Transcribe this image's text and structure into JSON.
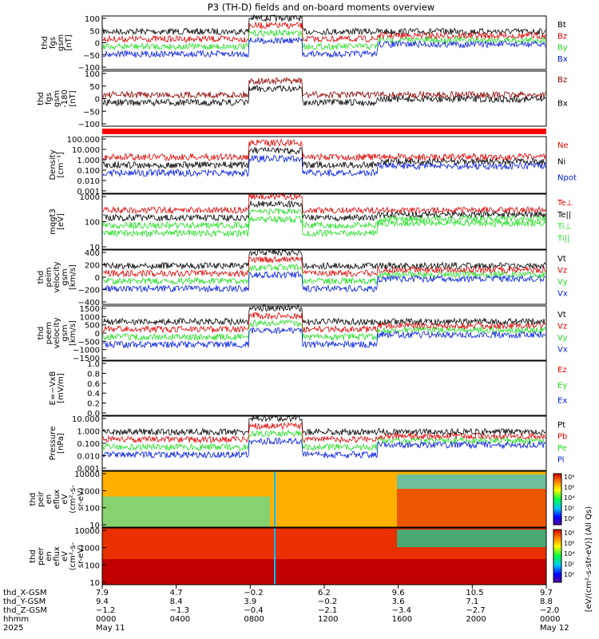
{
  "title": "P3 (TH-D) fields and on-board moments overview",
  "colors": {
    "black": "#000000",
    "red": "#e00000",
    "green": "#22dd22",
    "blue": "#0018e0",
    "dred": "#8b0000",
    "band": "#ff0000"
  },
  "panels": [
    {
      "id": "fgs",
      "ylabel": [
        "thd",
        "fgs",
        "gsm",
        "[nT]"
      ],
      "ticks": [
        "100",
        "50",
        "0",
        "−50",
        "−100"
      ],
      "legend": [
        {
          "text": "Bt",
          "color": "black"
        },
        {
          "text": "Bz",
          "color": "red"
        },
        {
          "text": "By",
          "color": "green"
        },
        {
          "text": "Bx",
          "color": "blue"
        }
      ]
    },
    {
      "id": "fgs-angle",
      "ylabel": [
        "thd",
        "fgs",
        "gsm",
        "-180",
        "[nT]"
      ],
      "ticks": [
        "100",
        "50",
        "0",
        "−50",
        "−100"
      ],
      "legend": [
        {
          "text": "Bz",
          "color": "dred"
        },
        {
          "text": "Bx",
          "color": "black"
        }
      ]
    },
    {
      "id": "density",
      "ylabel": [
        "Density",
        "[cm⁻³]"
      ],
      "ticks": [
        "100.000",
        "10.000",
        "1.000",
        "0.100",
        "0.010",
        "0.001"
      ],
      "legend": [
        {
          "text": "Ne",
          "color": "red"
        },
        {
          "text": "Ni",
          "color": "black"
        },
        {
          "text": "Npot",
          "color": "blue"
        }
      ]
    },
    {
      "id": "temp",
      "ylabel": [
        "mqgt3",
        "[eV]"
      ],
      "ticks": [
        "1000",
        "100",
        "10"
      ],
      "legend": [
        {
          "text": "Te⊥",
          "color": "red"
        },
        {
          "text": "Te||",
          "color": "black"
        },
        {
          "text": "Ti⊥",
          "color": "green"
        },
        {
          "text": "Ti||",
          "color": "green"
        }
      ]
    },
    {
      "id": "peim",
      "ylabel": [
        "thd",
        "peim",
        "velocity",
        "gsm",
        "[km/s]"
      ],
      "ticks": [
        "400",
        "200",
        "0",
        "−200",
        "−400"
      ],
      "legend": [
        {
          "text": "Vt",
          "color": "black"
        },
        {
          "text": "Vz",
          "color": "red"
        },
        {
          "text": "Vy",
          "color": "green"
        },
        {
          "text": "Vx",
          "color": "blue"
        }
      ]
    },
    {
      "id": "peem",
      "ylabel": [
        "thd",
        "peem",
        "velocity",
        "gsm",
        "[km/s]"
      ],
      "ticks": [
        "1500",
        "1000",
        "500",
        "0",
        "−500",
        "−1000",
        "−1500"
      ],
      "legend": [
        {
          "text": "Vt",
          "color": "black"
        },
        {
          "text": "Vz",
          "color": "red"
        },
        {
          "text": "Vy",
          "color": "green"
        },
        {
          "text": "Vx",
          "color": "blue"
        }
      ]
    },
    {
      "id": "efield",
      "ylabel": [
        "E=−VxB",
        "[mV/m]"
      ],
      "ticks": [
        "1.0",
        "0.8",
        "0.6",
        "0.4",
        "0.2",
        "0.0"
      ],
      "legend": [
        {
          "text": "Ez",
          "color": "red"
        },
        {
          "text": "Ey",
          "color": "green"
        },
        {
          "text": "Ex",
          "color": "blue"
        }
      ]
    },
    {
      "id": "pressure",
      "ylabel": [
        "Pressure",
        "[nPa]"
      ],
      "ticks": [
        "10.000",
        "1.000",
        "0.100",
        "0.010",
        "0.001"
      ],
      "legend": [
        {
          "text": "Pt",
          "color": "black"
        },
        {
          "text": "Pb",
          "color": "red"
        },
        {
          "text": "Pe",
          "color": "green"
        },
        {
          "text": "Pi",
          "color": "blue"
        }
      ]
    },
    {
      "id": "peir",
      "ylabel": [
        "thd",
        "peir",
        "en",
        "eflux",
        "eV",
        "(cm²-s-",
        "sr-eV)"
      ],
      "ticks": [
        "10000",
        "1000",
        "100",
        "10"
      ],
      "legend": []
    },
    {
      "id": "peer",
      "ylabel": [
        "thd",
        "peer",
        "en",
        "eflux",
        "eV",
        "(cm²-s-",
        "sr-eV)"
      ],
      "ticks": [
        "10000",
        "1000",
        "100",
        "10"
      ],
      "legend": []
    }
  ],
  "colorbar": {
    "label": "[eV/(cm²-s-str-eV)] (All Qs)",
    "ticks_top": [
      "10⁸",
      "10⁶",
      "10⁴",
      "10²",
      "10⁰"
    ],
    "ticks_bottom": [
      "10⁸",
      "10⁶",
      "10⁴",
      "10²",
      "10⁰"
    ]
  },
  "x_axis": {
    "row_labels": [
      "thd_X-GSM",
      "thd_Y-GSM",
      "thd_Z-GSM",
      "hhmm",
      "2025"
    ],
    "columns": [
      {
        "x": "7.9",
        "y": "9.4",
        "z": "−1.2",
        "hhmm": "0000",
        "date": "May 11"
      },
      {
        "x": "4.7",
        "y": "8.4",
        "z": "−1.3",
        "hhmm": "0400",
        "date": ""
      },
      {
        "x": "−0.2",
        "y": "3.9",
        "z": "−0.4",
        "hhmm": "0800",
        "date": ""
      },
      {
        "x": "6.2",
        "y": "−0.2",
        "z": "−2.1",
        "hhmm": "1200",
        "date": ""
      },
      {
        "x": "9.6",
        "y": "3.6",
        "z": "−3.4",
        "hhmm": "1600",
        "date": ""
      },
      {
        "x": "10.5",
        "y": "7.1",
        "z": "−2.7",
        "hhmm": "2000",
        "date": ""
      },
      {
        "x": "9.7",
        "y": "8.8",
        "z": "−2.0",
        "hhmm": "0000",
        "date": "May 12"
      }
    ]
  }
}
